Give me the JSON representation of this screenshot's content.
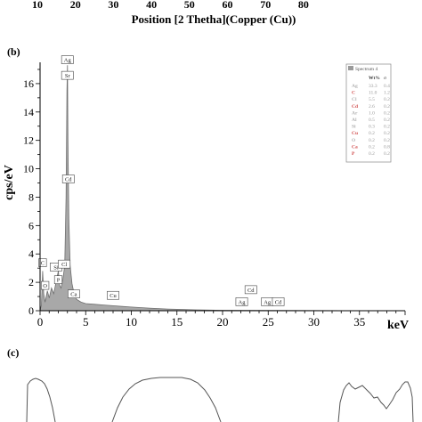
{
  "top_axis": {
    "ticks": [
      "10",
      "20",
      "30",
      "40",
      "50",
      "60",
      "70",
      "80"
    ],
    "xlabel": "Position [2 Thetha](Copper (Cu))"
  },
  "panel_b": {
    "label": "(b)"
  },
  "panel_c": {
    "label": "(c)"
  },
  "chart_data": {
    "type": "area",
    "title": "",
    "xlabel": "keV",
    "ylabel": "cps/eV",
    "xlim": [
      0,
      40
    ],
    "ylim": [
      0,
      17.5
    ],
    "xticks": [
      0,
      5,
      10,
      15,
      20,
      25,
      30,
      35
    ],
    "yticks": [
      0,
      2,
      4,
      6,
      8,
      10,
      12,
      14,
      16
    ],
    "grid": false,
    "legend_position": "top-right",
    "series": [
      {
        "name": "Spectrum 4",
        "color": "#a8a8a8",
        "x": [
          0.0,
          0.15,
          0.28,
          0.4,
          0.55,
          0.8,
          1.0,
          1.25,
          1.5,
          1.75,
          2.0,
          2.15,
          2.3,
          2.5,
          2.7,
          2.85,
          2.95,
          3.0,
          3.05,
          3.15,
          3.3,
          3.5,
          3.7,
          4.0,
          4.5,
          5.0,
          6.0,
          7.0,
          8.0,
          9.0,
          10.0,
          11.0,
          12.0,
          13.0,
          14.0,
          15.0,
          17.0,
          20.0,
          25.0,
          30.0,
          35.0,
          40.0
        ],
        "y": [
          0.0,
          0.4,
          2.8,
          1.2,
          0.6,
          1.4,
          0.9,
          1.6,
          1.2,
          2.0,
          2.8,
          1.8,
          1.6,
          2.2,
          3.2,
          8.0,
          15.5,
          17.3,
          12.0,
          6.5,
          3.2,
          1.9,
          1.3,
          0.8,
          0.6,
          0.5,
          0.45,
          0.4,
          0.35,
          0.3,
          0.26,
          0.22,
          0.18,
          0.15,
          0.12,
          0.1,
          0.06,
          0.03,
          0.02,
          0.01,
          0.0,
          0.0
        ]
      }
    ],
    "peak_labels": [
      {
        "text": "Ag",
        "x": 3.0,
        "y": 17.4
      },
      {
        "text": "Sr",
        "x": 3.0,
        "y": 16.3
      },
      {
        "text": "Cd",
        "x": 3.1,
        "y": 9.0
      },
      {
        "text": "C",
        "x": 0.28,
        "y": 3.1
      },
      {
        "text": "O",
        "x": 0.55,
        "y": 1.5
      },
      {
        "text": "Si",
        "x": 1.75,
        "y": 2.8
      },
      {
        "text": "P",
        "x": 2.0,
        "y": 1.9
      },
      {
        "text": "Cl",
        "x": 2.65,
        "y": 3.0
      },
      {
        "text": "Ca",
        "x": 3.7,
        "y": 0.9
      },
      {
        "text": "Cu",
        "x": 8.0,
        "y": 0.8
      },
      {
        "text": "Ag",
        "x": 22.1,
        "y": 0.35
      },
      {
        "text": "Cd",
        "x": 23.1,
        "y": 1.2
      },
      {
        "text": "Ag",
        "x": 24.9,
        "y": 0.35
      },
      {
        "text": "Cd",
        "x": 26.1,
        "y": 0.35
      }
    ],
    "legend_table": {
      "title": "Spectrum 4",
      "headers": [
        "Wt%",
        "σ"
      ],
      "rows": [
        {
          "el": "Ag",
          "wt": "33.3",
          "s": "0.4",
          "color": "#b0b0b0"
        },
        {
          "el": "C",
          "wt": "11.0",
          "s": "1.2",
          "color": "#d04a4a"
        },
        {
          "el": "Cl",
          "wt": "5.5",
          "s": "0.2",
          "color": "#b0b0b0"
        },
        {
          "el": "Cd",
          "wt": "2.6",
          "s": "0.2",
          "color": "#d04a4a"
        },
        {
          "el": "Ar",
          "wt": "1.0",
          "s": "0.2",
          "color": "#b0b0b0"
        },
        {
          "el": "Al",
          "wt": "0.5",
          "s": "0.2",
          "color": "#b0b0b0"
        },
        {
          "el": "Si",
          "wt": "0.3",
          "s": "0.2",
          "color": "#b0b0b0"
        },
        {
          "el": "Cu",
          "wt": "0.2",
          "s": "0.2",
          "color": "#d04a4a"
        },
        {
          "el": "O",
          "wt": "0.2",
          "s": "0.2",
          "color": "#b0b0b0"
        },
        {
          "el": "Ca",
          "wt": "0.2",
          "s": "0.8",
          "color": "#d04a4a"
        },
        {
          "el": "P",
          "wt": "0.2",
          "s": "0.2",
          "color": "#d04a4a"
        }
      ]
    }
  }
}
